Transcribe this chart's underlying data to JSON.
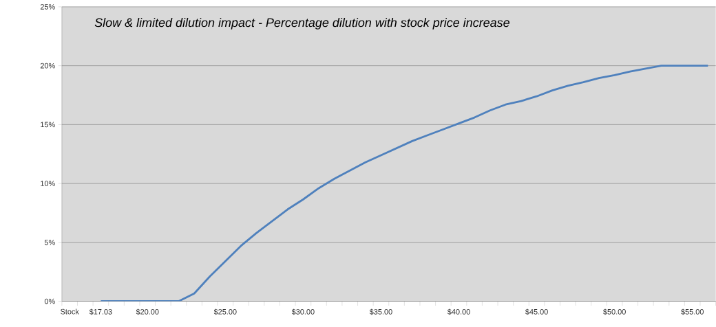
{
  "chart_data": {
    "type": "line",
    "title": "Slow & limited dilution impact - Percentage dilution with stock price increase",
    "categories": [
      "Stock",
      null,
      "$17.03",
      null,
      null,
      "$20.00",
      null,
      null,
      null,
      null,
      "$25.00",
      null,
      null,
      null,
      null,
      "$30.00",
      null,
      null,
      null,
      null,
      "$35.00",
      null,
      null,
      null,
      null,
      "$40.00",
      null,
      null,
      null,
      null,
      "$45.00",
      null,
      null,
      null,
      null,
      "$50.00",
      null,
      null,
      null,
      null,
      "$55.00",
      null
    ],
    "series": [
      {
        "color": "#4f81bd",
        "values": [
          null,
          null,
          0,
          0,
          0,
          0,
          0,
          0,
          0.66,
          2.1,
          3.4,
          4.7,
          5.8,
          6.8,
          7.8,
          8.65,
          9.6,
          10.4,
          11.1,
          11.8,
          12.4,
          13.0,
          13.6,
          14.1,
          14.6,
          15.1,
          15.6,
          16.2,
          16.7,
          17.0,
          17.4,
          17.9,
          18.3,
          18.6,
          18.95,
          19.2,
          19.5,
          19.75,
          20,
          20,
          20,
          20
        ]
      }
    ],
    "ylim": [
      0,
      25
    ],
    "yticks": [
      {
        "value": 0,
        "label": "0%"
      },
      {
        "value": 5,
        "label": "5%"
      },
      {
        "value": 10,
        "label": "10%"
      },
      {
        "value": 15,
        "label": "15%"
      },
      {
        "value": 20,
        "label": "20%"
      },
      {
        "value": 25,
        "label": "25%"
      }
    ],
    "grid": "y"
  }
}
